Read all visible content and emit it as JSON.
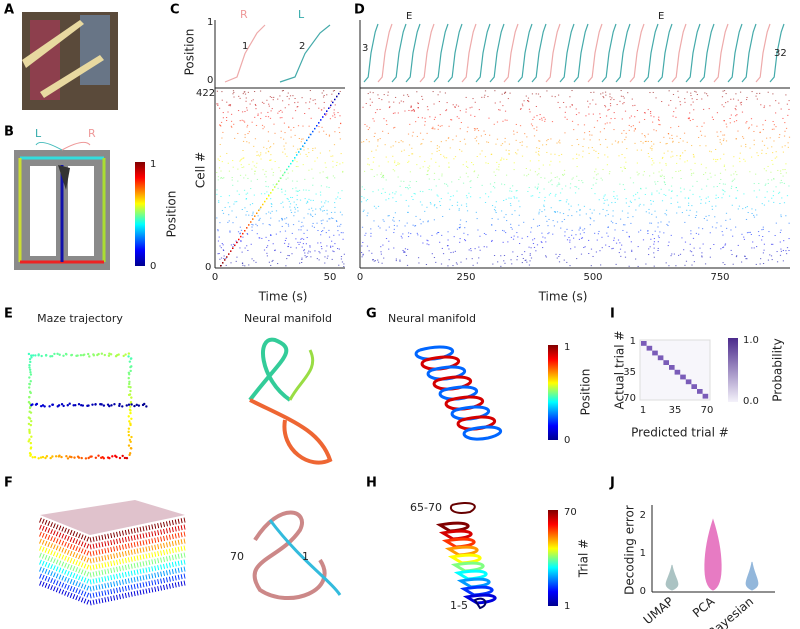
{
  "panels": {
    "A": {
      "label": "A"
    },
    "B": {
      "label": "B",
      "left": "L",
      "right": "R",
      "colorbar": {
        "max": "1",
        "min": "0",
        "title": "Position"
      }
    },
    "C": {
      "label": "C",
      "position_axis": "Position",
      "position_max": "1",
      "position_min": "0",
      "right": "R",
      "left": "L",
      "trial_1": "1",
      "trial_2": "2",
      "cell_axis": "Cell #",
      "cell_max": "422",
      "cell_min": "0",
      "x_start": "0",
      "x_end": "50",
      "x_axis": "Time (s)"
    },
    "D": {
      "label": "D",
      "marker_1": "E",
      "marker_2": "E",
      "trial_first": "3",
      "trial_last": "32",
      "x_ticks": [
        "0",
        "250",
        "500",
        "750"
      ],
      "x_axis": "Time (s)"
    },
    "E": {
      "label": "E",
      "left_title": "Maze trajectory",
      "right_title": "Neural manifold"
    },
    "F": {
      "label": "F",
      "start_label": "70",
      "end_label": "1"
    },
    "G": {
      "label": "G",
      "title": "Neural manifold",
      "colorbar": {
        "max": "1",
        "min": "0",
        "title": "Position"
      }
    },
    "H": {
      "label": "H",
      "top_label": "65-70",
      "bottom_label": "1-5",
      "colorbar": {
        "max": "70",
        "min": "1",
        "title": "Trial #"
      }
    },
    "I": {
      "label": "I",
      "y_axis": "Actual  trial #",
      "y_ticks": [
        "1",
        "35",
        "70"
      ],
      "x_ticks": [
        "1",
        "35",
        "70"
      ],
      "x_axis": "Predicted trial #",
      "colorbar": {
        "max": "1.0",
        "min": "0.0",
        "title": "Probability"
      }
    },
    "J": {
      "label": "J",
      "y_axis": "Decoding error",
      "y_ticks": [
        "0",
        "1",
        "2"
      ],
      "categories": [
        "UMAP",
        "PCA",
        "Bayesian"
      ]
    }
  }
}
